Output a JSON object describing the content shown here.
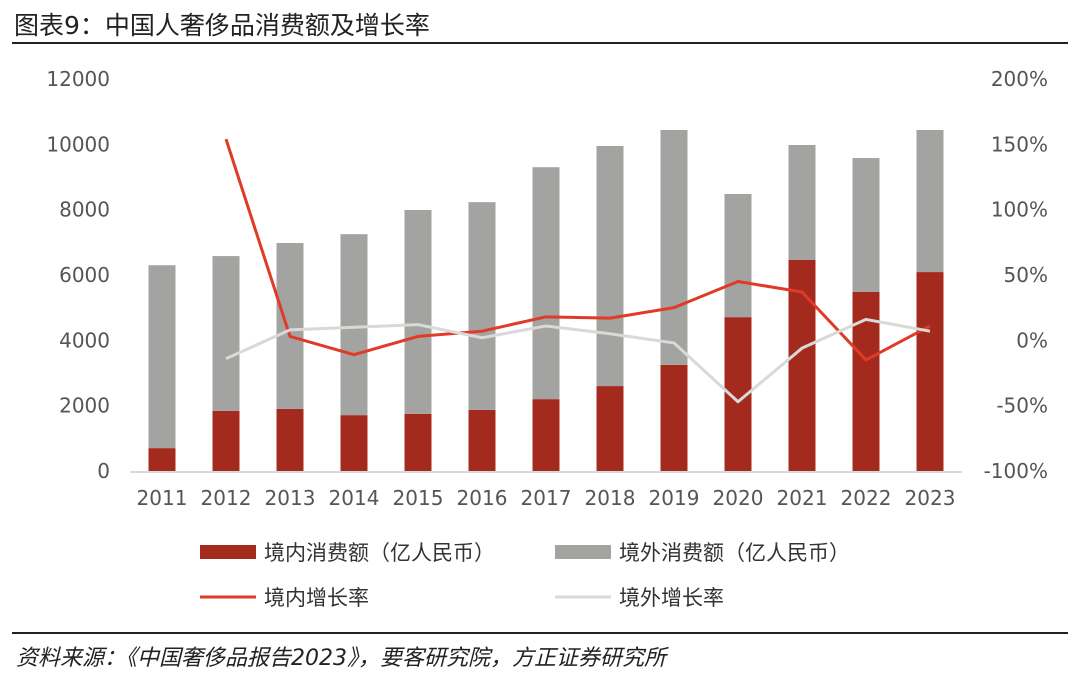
{
  "title": "图表9：中国人奢侈品消费额及增长率",
  "source": "资料来源：《中国奢侈品报告2023》，要客研究院，方正证券研究所",
  "chart_data": {
    "type": "bar",
    "stacked": true,
    "categories": [
      "2011",
      "2012",
      "2013",
      "2014",
      "2015",
      "2016",
      "2017",
      "2018",
      "2019",
      "2020",
      "2021",
      "2022",
      "2023"
    ],
    "series": [
      {
        "name": "境内消费额（亿人民币）",
        "type": "bar",
        "axis": "left",
        "color": "#a52a1e",
        "values": [
          700,
          1840,
          1900,
          1710,
          1750,
          1870,
          2200,
          2600,
          3250,
          4710,
          6460,
          5480,
          6090
        ]
      },
      {
        "name": "境外消费额（亿人民币）",
        "type": "bar",
        "axis": "left",
        "color": "#a3a3a1",
        "values": [
          5600,
          4740,
          5080,
          5540,
          6240,
          6360,
          7100,
          7350,
          7190,
          3770,
          3520,
          4100,
          4350
        ]
      },
      {
        "name": "境内增长率",
        "type": "line",
        "axis": "right",
        "color": "#e03a28",
        "values": [
          null,
          154,
          3,
          -11,
          3,
          7,
          18,
          17,
          25,
          45,
          37,
          -15,
          11
        ]
      },
      {
        "name": "境外增长率",
        "type": "line",
        "axis": "right",
        "color": "#d9d9d7",
        "values": [
          null,
          -14,
          8,
          10,
          12,
          2,
          11,
          5,
          -2,
          -47,
          -6,
          16,
          7
        ]
      }
    ],
    "ylim": [
      0,
      12000
    ],
    "yticks": [
      "0",
      "2000",
      "4000",
      "6000",
      "8000",
      "10000",
      "12000"
    ],
    "y2lim": [
      -100,
      200
    ],
    "y2ticks": [
      "-100%",
      "-50%",
      "0%",
      "50%",
      "100%",
      "150%",
      "200%"
    ],
    "grid": false,
    "legend_position": "bottom"
  }
}
